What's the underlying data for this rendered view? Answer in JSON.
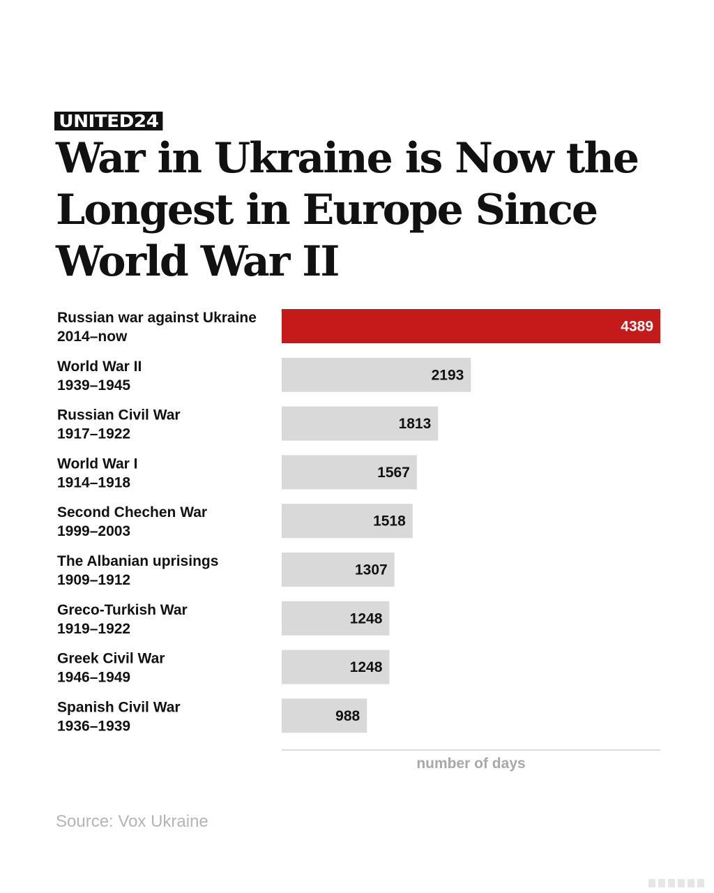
{
  "brand": {
    "logo_text": "UNITED24"
  },
  "chart_data": {
    "type": "bar",
    "orientation": "horizontal",
    "title": "War in Ukraine is Now the Longest in Europe Since World War II",
    "xlabel": "number of days",
    "ylabel": "",
    "xlim": [
      0,
      4389
    ],
    "categories": [
      {
        "name": "Russian war against Ukraine",
        "period": "2014–now"
      },
      {
        "name": "World War II",
        "period": "1939–1945"
      },
      {
        "name": "Russian Civil War",
        "period": "1917–1922"
      },
      {
        "name": "World War I",
        "period": "1914–1918"
      },
      {
        "name": "Second Chechen War",
        "period": "1999–2003"
      },
      {
        "name": "The Albanian uprisings",
        "period": "1909–1912"
      },
      {
        "name": "Greco-Turkish War",
        "period": "1919–1922"
      },
      {
        "name": "Greek Civil War",
        "period": "1946–1949"
      },
      {
        "name": "Spanish Civil War",
        "period": "1936–1939"
      }
    ],
    "values": [
      4389,
      2193,
      1813,
      1567,
      1518,
      1307,
      1248,
      1248,
      988
    ],
    "highlight_index": 0,
    "colors": {
      "highlight": "#c41a1a",
      "bar": "#d9d9d9",
      "axis": "#cfcfcf",
      "label": "#111111",
      "muted": "#a8a8a8"
    }
  },
  "footer": {
    "source": "Source: Vox Ukraine"
  }
}
